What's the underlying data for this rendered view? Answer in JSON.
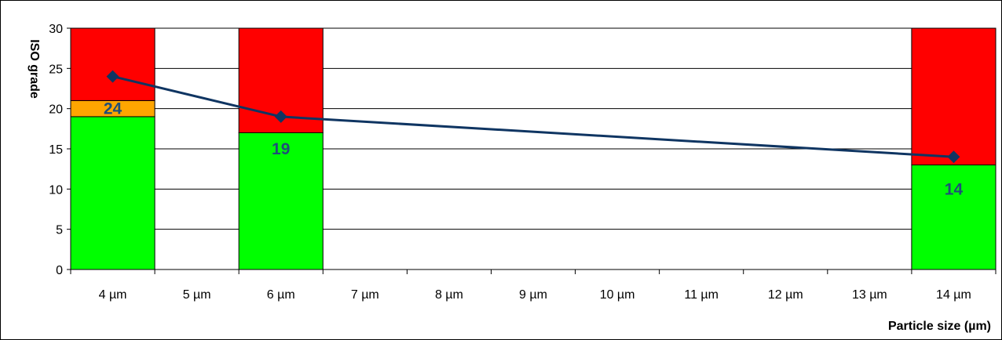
{
  "chart_data": {
    "type": "bar",
    "categories": [
      "4 µm",
      "5 µm",
      "6 µm",
      "7 µm",
      "8 µm",
      "9 µm",
      "10 µm",
      "11 µm",
      "12 µm",
      "13 µm",
      "14 µm"
    ],
    "xlabel": "Particle size (µm)",
    "ylabel": "ISO grade",
    "ylim": [
      0,
      30
    ],
    "yticks": [
      0,
      5,
      10,
      15,
      20,
      25,
      30
    ],
    "grid": true,
    "stacks": [
      {
        "category": "4 µm",
        "green": 19,
        "orange": 2,
        "red": 9
      },
      {
        "category": "6 µm",
        "green": 17,
        "orange": 0,
        "red": 13
      },
      {
        "category": "14 µm",
        "green": 13,
        "orange": 0,
        "red": 17
      }
    ],
    "line": {
      "points": [
        {
          "category": "4 µm",
          "value": 24,
          "label": "24"
        },
        {
          "category": "6 µm",
          "value": 19,
          "label": "19"
        },
        {
          "category": "14 µm",
          "value": 14,
          "label": "14"
        }
      ]
    },
    "colors": {
      "green": "#00ff00",
      "orange": "#ffa500",
      "red": "#ff0000",
      "line": "#0f3562",
      "label": "#1f4e79",
      "grid": "#000000"
    }
  }
}
